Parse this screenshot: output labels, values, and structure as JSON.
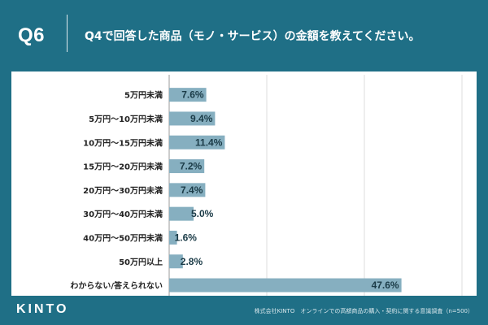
{
  "header": {
    "question_number": "Q6",
    "question_text": "Q4で回答した商品（モノ・サービス）の金額を教えてください。"
  },
  "chart_data": {
    "type": "bar",
    "orientation": "horizontal",
    "categories": [
      "5万円未満",
      "5万円〜10万円未満",
      "10万円〜15万円未満",
      "15万円〜20万円未満",
      "20万円〜30万円未満",
      "30万円〜40万円未満",
      "40万円〜50万円未満",
      "50万円以上",
      "わからない/答えられない"
    ],
    "values": [
      7.6,
      9.4,
      11.4,
      7.2,
      7.4,
      5.0,
      1.6,
      2.8,
      47.6
    ],
    "value_labels": [
      "7.6%",
      "9.4%",
      "11.4%",
      "7.2%",
      "7.4%",
      "5.0%",
      "1.6%",
      "2.8%",
      "47.6%"
    ],
    "xlim": [
      0,
      60
    ],
    "gridlines": [
      0,
      20,
      40,
      60
    ],
    "bar_color": "#86afc0"
  },
  "footer": {
    "logo": "KINTO",
    "source": "株式会社KINTO　オンラインでの高額商品の購入・契約に関する意識調査（n=500）"
  }
}
